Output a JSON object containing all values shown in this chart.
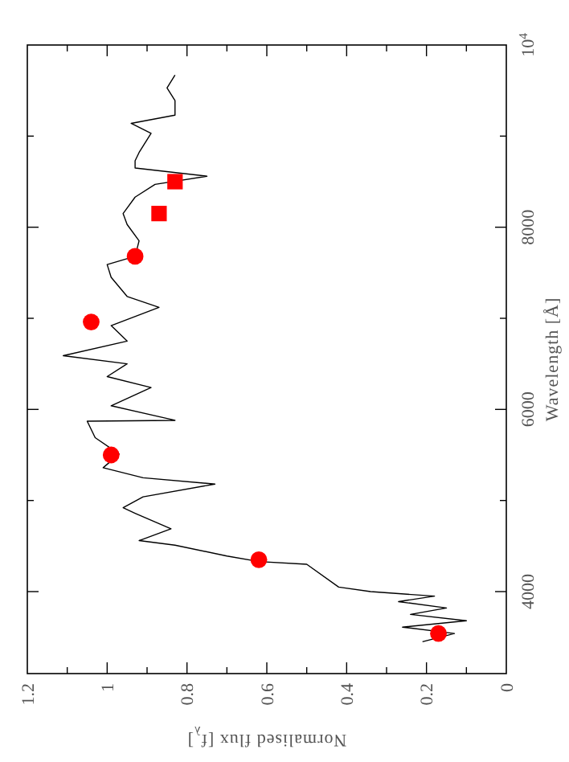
{
  "chart_data": {
    "type": "line",
    "xlabel": "Normalised flux [f$_{λ}$]",
    "ylabel": "Wavelength [Å]",
    "xlim": [
      1.2,
      0
    ],
    "ylim": [
      3100,
      10000
    ],
    "xticks": [
      0,
      {
        "value": 0.1,
        "label": null
      },
      {
        "value": 0.2,
        "label": "0.2"
      },
      {
        "value": 0.3,
        "label": null
      },
      {
        "value": 0.4,
        "label": "0.4"
      },
      {
        "value": 0.5,
        "label": null
      },
      {
        "value": 0.6,
        "label": "0.6"
      },
      {
        "value": 0.7,
        "label": null
      },
      {
        "value": 0.8,
        "label": "0.8"
      },
      {
        "value": 0.9,
        "label": null
      },
      {
        "value": 1,
        "label": "1"
      },
      {
        "value": 1.1,
        "label": null
      },
      {
        "value": 1.2,
        "label": "1.2"
      }
    ],
    "yticks": [
      {
        "value": 4000,
        "label": "4000"
      },
      {
        "value": 5000,
        "label": null
      },
      {
        "value": 6000,
        "label": "6000"
      },
      {
        "value": 7000,
        "label": null
      },
      {
        "value": 8000,
        "label": "8000"
      },
      {
        "value": 9000,
        "label": null
      },
      {
        "value": 10000,
        "label": "10$^{4}$"
      }
    ],
    "grid": false,
    "series": [
      {
        "color": "#000000",
        "marker": "none",
        "line_style": "solid",
        "values": [
          3450,
          3540,
          3610,
          3680,
          3750,
          3820,
          3890,
          3950,
          4000,
          4050,
          4300,
          4330,
          4390,
          4510,
          4560,
          4690,
          4860,
          4920,
          5040,
          5180,
          5250,
          5360,
          5510,
          5690,
          5870,
          5880,
          6040,
          6240,
          6360,
          6500,
          6590,
          6750,
          6920,
          7120,
          7240,
          7450,
          7590,
          7680,
          7850,
          8030,
          8150,
          8330,
          8470,
          8560,
          8650,
          8730,
          8820,
          9030,
          9140,
          9230,
          9390,
          9530,
          9670
        ],
        "x": [
          0.21,
          0.13,
          0.26,
          0.1,
          0.24,
          0.15,
          0.27,
          0.18,
          0.34,
          0.42,
          0.5,
          0.62,
          0.7,
          0.83,
          0.92,
          0.84,
          0.93,
          0.96,
          0.91,
          0.73,
          0.91,
          1.01,
          0.97,
          1.03,
          1.05,
          0.83,
          0.99,
          0.89,
          1.0,
          0.95,
          1.11,
          0.95,
          0.99,
          0.87,
          0.95,
          0.99,
          1.0,
          0.93,
          0.92,
          0.95,
          0.96,
          0.93,
          0.88,
          0.75,
          0.93,
          0.93,
          0.92,
          0.89,
          0.94,
          0.83,
          0.83,
          0.85,
          0.83
        ]
      },
      {
        "type": "scatter",
        "color": "#ff0000",
        "marker": "circle",
        "values": [
          3540,
          4350,
          5500,
          6960,
          7680
        ],
        "x": [
          0.17,
          0.62,
          0.99,
          1.04,
          0.93
        ]
      },
      {
        "type": "scatter",
        "color": "#ff0000",
        "marker": "square",
        "values": [
          8150,
          8500
        ],
        "x": [
          0.87,
          0.83
        ]
      }
    ]
  }
}
